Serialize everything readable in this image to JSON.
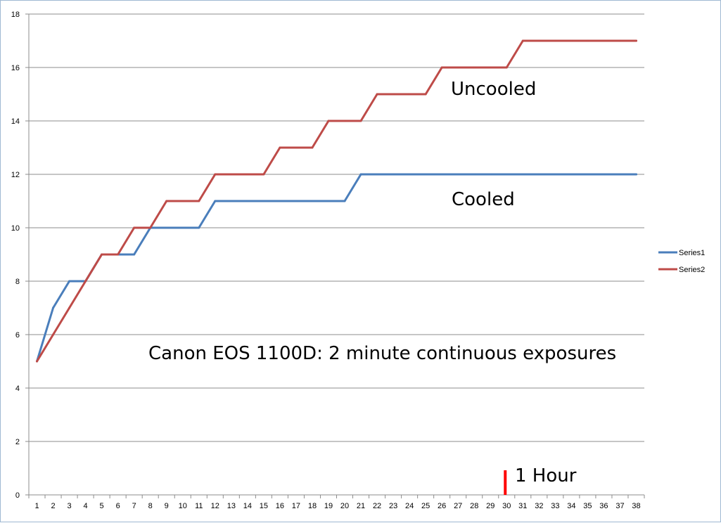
{
  "chart_data": {
    "type": "line",
    "title": "",
    "xlabel": "",
    "ylabel": "",
    "x": [
      1,
      2,
      3,
      4,
      5,
      6,
      7,
      8,
      9,
      10,
      11,
      12,
      13,
      14,
      15,
      16,
      17,
      18,
      19,
      20,
      21,
      22,
      23,
      24,
      25,
      26,
      27,
      28,
      29,
      30,
      31,
      32,
      33,
      34,
      35,
      36,
      37,
      38
    ],
    "x_tick_labels": [
      "1",
      "2",
      "3",
      "4",
      "5",
      "6",
      "7",
      "8",
      "9",
      "10",
      "11",
      "12",
      "13",
      "14",
      "15",
      "16",
      "17",
      "18",
      "19",
      "20",
      "21",
      "22",
      "23",
      "24",
      "25",
      "26",
      "27",
      "28",
      "29",
      "30",
      "31",
      "32",
      "33",
      "34",
      "35",
      "36",
      "37",
      "38"
    ],
    "ylim": [
      0,
      18
    ],
    "y_ticks": [
      0,
      2,
      4,
      6,
      8,
      10,
      12,
      14,
      16,
      18
    ],
    "y_tick_labels": [
      "0",
      "2",
      "4",
      "6",
      "8",
      "10",
      "12",
      "14",
      "16",
      "18"
    ],
    "grid": "horizontal",
    "legend_placement": "right",
    "series": [
      {
        "name": "Series1",
        "color": "#4a7ebb",
        "values": [
          5,
          7,
          8,
          8,
          9,
          9,
          9,
          10,
          10,
          10,
          10,
          11,
          11,
          11,
          11,
          11,
          11,
          11,
          11,
          11,
          12,
          12,
          12,
          12,
          12,
          12,
          12,
          12,
          12,
          12,
          12,
          12,
          12,
          12,
          12,
          12,
          12,
          12
        ]
      },
      {
        "name": "Series2",
        "color": "#be4b48",
        "values": [
          5,
          6,
          7,
          8,
          9,
          9,
          10,
          10,
          11,
          11,
          11,
          12,
          12,
          12,
          12,
          13,
          13,
          13,
          14,
          14,
          14,
          15,
          15,
          15,
          15,
          16,
          16,
          16,
          16,
          16,
          17,
          17,
          17,
          17,
          17,
          17,
          17,
          17
        ]
      }
    ],
    "annotations": [
      {
        "text": "Uncooled"
      },
      {
        "text": "Cooled"
      },
      {
        "text": "Canon  EOS 1100D:  2 minute continuous exposures"
      },
      {
        "text": "1 Hour",
        "marker_x": 30,
        "marker_color": "#ff0000"
      }
    ]
  }
}
